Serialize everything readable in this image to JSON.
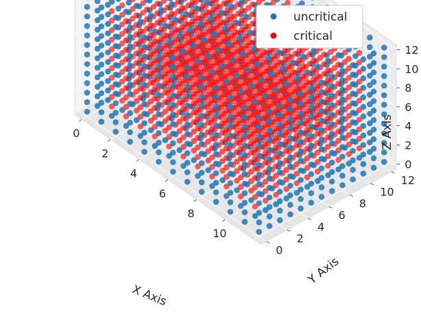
{
  "chart_data": {
    "type": "scatter3d",
    "title": "",
    "xlabel": "X Axis",
    "ylabel": "Y Axis",
    "zlabel": "Z Axis",
    "xlim": [
      0,
      12
    ],
    "ylim": [
      0,
      12
    ],
    "zlim": [
      0,
      12
    ],
    "x_ticks": [
      "0",
      "2",
      "4",
      "6",
      "8",
      "10"
    ],
    "y_ticks": [
      "0",
      "2",
      "4",
      "6",
      "8",
      "10",
      "12"
    ],
    "z_ticks": [
      "0",
      "2",
      "4",
      "6",
      "8",
      "10",
      "12"
    ],
    "grid": true,
    "legend_location": "upper-right",
    "series": [
      {
        "name": "uncritical",
        "color": "#1f77b4",
        "description": "grid points on the outer shell of the 0-12 cube (any coordinate equal to 0 or 12)"
      },
      {
        "name": "critical",
        "color": "#ff0000",
        "description": "interior grid points (all coordinates between 1 and 11)"
      }
    ],
    "grid_range": [
      0,
      12
    ]
  },
  "legend": {
    "items": [
      {
        "label": "uncritical",
        "color": "#1f77b4"
      },
      {
        "label": "critical",
        "color": "#ff0000"
      }
    ]
  }
}
